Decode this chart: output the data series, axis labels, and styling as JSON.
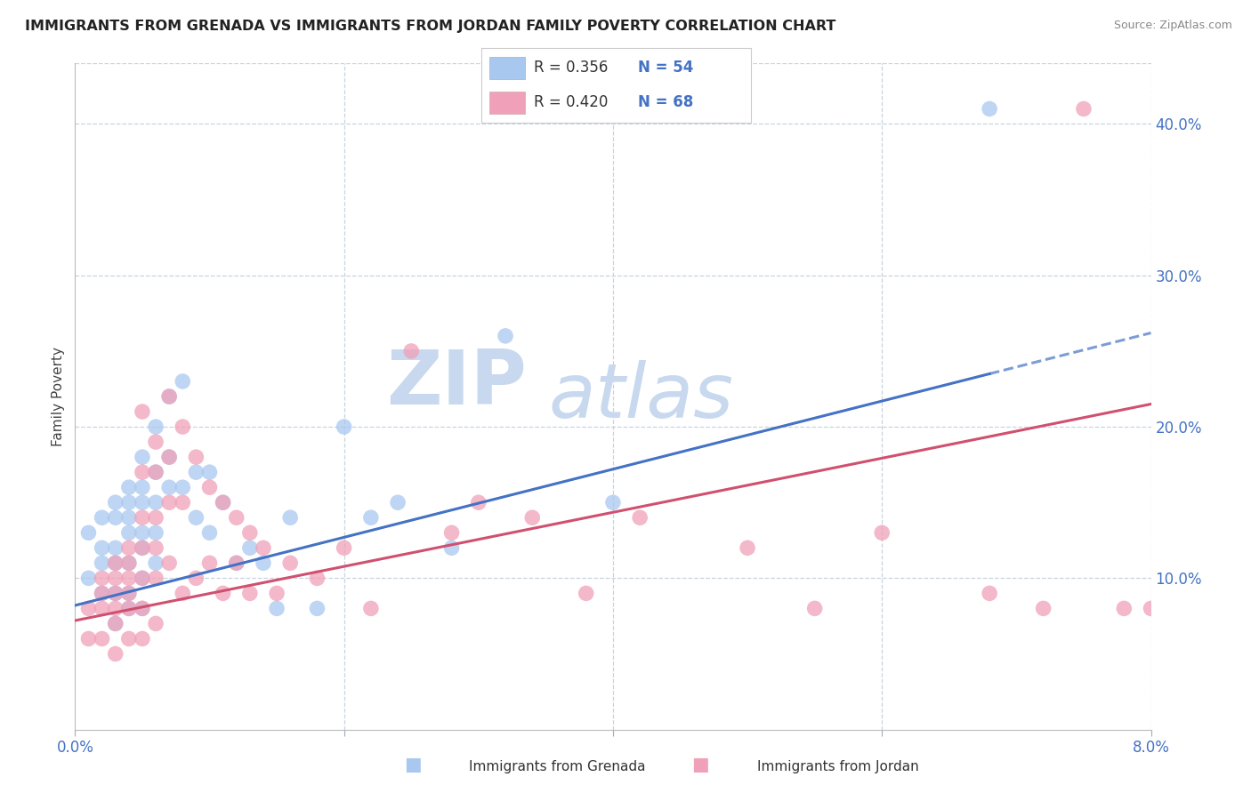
{
  "title": "IMMIGRANTS FROM GRENADA VS IMMIGRANTS FROM JORDAN FAMILY POVERTY CORRELATION CHART",
  "source": "Source: ZipAtlas.com",
  "ylabel": "Family Poverty",
  "xlim": [
    0.0,
    0.08
  ],
  "ylim": [
    0.0,
    0.44
  ],
  "series1_label": "Immigrants from Grenada",
  "series1_color": "#a8c8f0",
  "series1_R": "0.356",
  "series1_N": "54",
  "series2_label": "Immigrants from Jordan",
  "series2_color": "#f0a0b8",
  "series2_R": "0.420",
  "series2_N": "68",
  "trend1_color": "#4472c4",
  "trend2_color": "#d05070",
  "background_color": "#ffffff",
  "watermark": "ZIPatlas",
  "watermark_color": "#c8d8ee",
  "grid_color": "#c8d4e0",
  "legend_R_color": "#333333",
  "legend_N_color": "#4472c4",
  "series1_x": [
    0.001,
    0.001,
    0.002,
    0.002,
    0.002,
    0.002,
    0.003,
    0.003,
    0.003,
    0.003,
    0.003,
    0.003,
    0.004,
    0.004,
    0.004,
    0.004,
    0.004,
    0.004,
    0.004,
    0.005,
    0.005,
    0.005,
    0.005,
    0.005,
    0.005,
    0.005,
    0.006,
    0.006,
    0.006,
    0.006,
    0.006,
    0.007,
    0.007,
    0.007,
    0.008,
    0.008,
    0.009,
    0.009,
    0.01,
    0.01,
    0.011,
    0.012,
    0.013,
    0.014,
    0.015,
    0.016,
    0.018,
    0.02,
    0.022,
    0.024,
    0.028,
    0.032,
    0.04,
    0.068
  ],
  "series1_y": [
    0.13,
    0.1,
    0.14,
    0.12,
    0.11,
    0.09,
    0.15,
    0.14,
    0.12,
    0.11,
    0.09,
    0.07,
    0.16,
    0.15,
    0.14,
    0.13,
    0.11,
    0.09,
    0.08,
    0.18,
    0.16,
    0.15,
    0.13,
    0.12,
    0.1,
    0.08,
    0.2,
    0.17,
    0.15,
    0.13,
    0.11,
    0.22,
    0.18,
    0.16,
    0.23,
    0.16,
    0.17,
    0.14,
    0.17,
    0.13,
    0.15,
    0.11,
    0.12,
    0.11,
    0.08,
    0.14,
    0.08,
    0.2,
    0.14,
    0.15,
    0.12,
    0.26,
    0.15,
    0.41
  ],
  "series2_x": [
    0.001,
    0.001,
    0.002,
    0.002,
    0.002,
    0.002,
    0.003,
    0.003,
    0.003,
    0.003,
    0.003,
    0.003,
    0.004,
    0.004,
    0.004,
    0.004,
    0.004,
    0.004,
    0.005,
    0.005,
    0.005,
    0.005,
    0.005,
    0.005,
    0.005,
    0.006,
    0.006,
    0.006,
    0.006,
    0.006,
    0.006,
    0.007,
    0.007,
    0.007,
    0.007,
    0.008,
    0.008,
    0.008,
    0.009,
    0.009,
    0.01,
    0.01,
    0.011,
    0.011,
    0.012,
    0.012,
    0.013,
    0.013,
    0.014,
    0.015,
    0.016,
    0.018,
    0.02,
    0.022,
    0.025,
    0.028,
    0.03,
    0.034,
    0.038,
    0.042,
    0.05,
    0.055,
    0.06,
    0.068,
    0.072,
    0.075,
    0.078,
    0.08
  ],
  "series2_y": [
    0.08,
    0.06,
    0.1,
    0.09,
    0.08,
    0.06,
    0.11,
    0.1,
    0.09,
    0.08,
    0.07,
    0.05,
    0.12,
    0.11,
    0.1,
    0.09,
    0.08,
    0.06,
    0.21,
    0.17,
    0.14,
    0.12,
    0.1,
    0.08,
    0.06,
    0.19,
    0.17,
    0.14,
    0.12,
    0.1,
    0.07,
    0.22,
    0.18,
    0.15,
    0.11,
    0.2,
    0.15,
    0.09,
    0.18,
    0.1,
    0.16,
    0.11,
    0.15,
    0.09,
    0.14,
    0.11,
    0.13,
    0.09,
    0.12,
    0.09,
    0.11,
    0.1,
    0.12,
    0.08,
    0.25,
    0.13,
    0.15,
    0.14,
    0.09,
    0.14,
    0.12,
    0.08,
    0.13,
    0.09,
    0.08,
    0.41,
    0.08,
    0.08
  ],
  "trend1_x0": 0.0,
  "trend1_y0": 0.082,
  "trend1_x1": 0.068,
  "trend1_y1": 0.235,
  "trend1_dash_x0": 0.068,
  "trend1_dash_y0": 0.235,
  "trend1_dash_x1": 0.08,
  "trend1_dash_y1": 0.262,
  "trend2_x0": 0.0,
  "trend2_y0": 0.072,
  "trend2_x1": 0.08,
  "trend2_y1": 0.215
}
